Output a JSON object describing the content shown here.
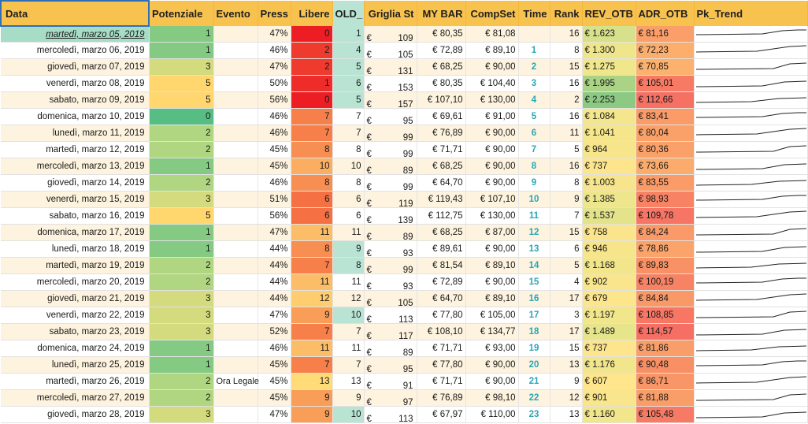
{
  "columns": [
    {
      "key": "data",
      "label": "Data"
    },
    {
      "key": "potenziale",
      "label": "Potenziale"
    },
    {
      "key": "evento",
      "label": "Evento"
    },
    {
      "key": "press",
      "label": "Press"
    },
    {
      "key": "libere",
      "label": "Libere"
    },
    {
      "key": "old",
      "label": "OLD_"
    },
    {
      "key": "griglia",
      "label": "Griglia St"
    },
    {
      "key": "mybar",
      "label": "MY BAR"
    },
    {
      "key": "compset",
      "label": "CompSet"
    },
    {
      "key": "time",
      "label": "Time"
    },
    {
      "key": "rank",
      "label": "Rank"
    },
    {
      "key": "rev",
      "label": "REV_OTB"
    },
    {
      "key": "adr",
      "label": "ADR_OTB"
    },
    {
      "key": "trend",
      "label": "Pk_Trend"
    }
  ],
  "colors": {
    "header": "#f8c24f",
    "header_old": "#b9e4d4",
    "selected_cell": "#a7dcc7",
    "selection_border": "#2e6fb8",
    "time_text": "#2aa6b8"
  },
  "rows": [
    {
      "data": "martedì, marzo 05, 2019",
      "potenziale": "1",
      "evento": "",
      "press": "47%",
      "libere": "0",
      "old": "1",
      "griglia_cur": "€",
      "griglia": "109",
      "mybar": "€ 80,35",
      "compset": "€ 81,08",
      "time": "",
      "rank": "16",
      "rev": "€ 1.623",
      "adr": "€ 81,16"
    },
    {
      "data": "mercoledì, marzo 06, 2019",
      "potenziale": "1",
      "evento": "",
      "press": "46%",
      "libere": "2",
      "old": "4",
      "griglia_cur": "€",
      "griglia": "105",
      "mybar": "€ 72,89",
      "compset": "€ 89,10",
      "time": "1",
      "rank": "8",
      "rev": "€ 1.300",
      "adr": "€ 72,23"
    },
    {
      "data": "giovedì, marzo 07, 2019",
      "potenziale": "3",
      "evento": "",
      "press": "47%",
      "libere": "2",
      "old": "5",
      "griglia_cur": "€",
      "griglia": "131",
      "mybar": "€ 68,25",
      "compset": "€ 90,00",
      "time": "2",
      "rank": "15",
      "rev": "€ 1.275",
      "adr": "€ 70,85"
    },
    {
      "data": "venerdì, marzo 08, 2019",
      "potenziale": "5",
      "evento": "",
      "press": "50%",
      "libere": "1",
      "old": "6",
      "griglia_cur": "€",
      "griglia": "153",
      "mybar": "€ 80,35",
      "compset": "€ 104,40",
      "time": "3",
      "rank": "16",
      "rev": "€ 1.995",
      "adr": "€ 105,01"
    },
    {
      "data": "sabato, marzo 09, 2019",
      "potenziale": "5",
      "evento": "",
      "press": "56%",
      "libere": "0",
      "old": "5",
      "griglia_cur": "€",
      "griglia": "157",
      "mybar": "€ 107,10",
      "compset": "€ 130,00",
      "time": "4",
      "rank": "2",
      "rev": "€ 2.253",
      "adr": "€ 112,66"
    },
    {
      "data": "domenica, marzo 10, 2019",
      "potenziale": "0",
      "evento": "",
      "press": "46%",
      "libere": "7",
      "old": "7",
      "griglia_cur": "€",
      "griglia": "95",
      "mybar": "€ 69,61",
      "compset": "€ 91,00",
      "time": "5",
      "rank": "16",
      "rev": "€ 1.084",
      "adr": "€ 83,41"
    },
    {
      "data": "lunedì, marzo 11, 2019",
      "potenziale": "2",
      "evento": "",
      "press": "46%",
      "libere": "7",
      "old": "7",
      "griglia_cur": "€",
      "griglia": "99",
      "mybar": "€ 76,89",
      "compset": "€ 90,00",
      "time": "6",
      "rank": "11",
      "rev": "€ 1.041",
      "adr": "€ 80,04"
    },
    {
      "data": "martedì, marzo 12, 2019",
      "potenziale": "2",
      "evento": "",
      "press": "45%",
      "libere": "8",
      "old": "8",
      "griglia_cur": "€",
      "griglia": "99",
      "mybar": "€ 71,71",
      "compset": "€ 90,00",
      "time": "7",
      "rank": "5",
      "rev": "€ 964",
      "adr": "€ 80,36"
    },
    {
      "data": "mercoledì, marzo 13, 2019",
      "potenziale": "1",
      "evento": "",
      "press": "45%",
      "libere": "10",
      "old": "10",
      "griglia_cur": "€",
      "griglia": "89",
      "mybar": "€ 68,25",
      "compset": "€ 90,00",
      "time": "8",
      "rank": "16",
      "rev": "€ 737",
      "adr": "€ 73,66"
    },
    {
      "data": "giovedì, marzo 14, 2019",
      "potenziale": "2",
      "evento": "",
      "press": "46%",
      "libere": "8",
      "old": "8",
      "griglia_cur": "€",
      "griglia": "99",
      "mybar": "€ 64,70",
      "compset": "€ 90,00",
      "time": "9",
      "rank": "8",
      "rev": "€ 1.003",
      "adr": "€ 83,55"
    },
    {
      "data": "venerdì, marzo 15, 2019",
      "potenziale": "3",
      "evento": "",
      "press": "51%",
      "libere": "6",
      "old": "6",
      "griglia_cur": "€",
      "griglia": "119",
      "mybar": "€ 119,43",
      "compset": "€ 107,10",
      "time": "10",
      "rank": "9",
      "rev": "€ 1.385",
      "adr": "€ 98,93"
    },
    {
      "data": "sabato, marzo 16, 2019",
      "potenziale": "5",
      "evento": "",
      "press": "56%",
      "libere": "6",
      "old": "6",
      "griglia_cur": "€",
      "griglia": "139",
      "mybar": "€ 112,75",
      "compset": "€ 130,00",
      "time": "11",
      "rank": "7",
      "rev": "€ 1.537",
      "adr": "€ 109,78"
    },
    {
      "data": "domenica, marzo 17, 2019",
      "potenziale": "1",
      "evento": "",
      "press": "47%",
      "libere": "11",
      "old": "11",
      "griglia_cur": "€",
      "griglia": "89",
      "mybar": "€ 68,25",
      "compset": "€ 87,00",
      "time": "12",
      "rank": "15",
      "rev": "€ 758",
      "adr": "€ 84,24"
    },
    {
      "data": "lunedì, marzo 18, 2019",
      "potenziale": "1",
      "evento": "",
      "press": "44%",
      "libere": "8",
      "old": "9",
      "griglia_cur": "€",
      "griglia": "93",
      "mybar": "€ 89,61",
      "compset": "€ 90,00",
      "time": "13",
      "rank": "6",
      "rev": "€ 946",
      "adr": "€ 78,86"
    },
    {
      "data": "martedì, marzo 19, 2019",
      "potenziale": "2",
      "evento": "",
      "press": "44%",
      "libere": "7",
      "old": "8",
      "griglia_cur": "€",
      "griglia": "99",
      "mybar": "€ 81,54",
      "compset": "€ 89,10",
      "time": "14",
      "rank": "5",
      "rev": "€ 1.168",
      "adr": "€ 89,83"
    },
    {
      "data": "mercoledì, marzo 20, 2019",
      "potenziale": "2",
      "evento": "",
      "press": "44%",
      "libere": "11",
      "old": "11",
      "griglia_cur": "€",
      "griglia": "93",
      "mybar": "€ 72,89",
      "compset": "€ 90,00",
      "time": "15",
      "rank": "4",
      "rev": "€ 902",
      "adr": "€ 100,19"
    },
    {
      "data": "giovedì, marzo 21, 2019",
      "potenziale": "3",
      "evento": "",
      "press": "44%",
      "libere": "12",
      "old": "12",
      "griglia_cur": "€",
      "griglia": "105",
      "mybar": "€ 64,70",
      "compset": "€ 89,10",
      "time": "16",
      "rank": "17",
      "rev": "€ 679",
      "adr": "€ 84,84"
    },
    {
      "data": "venerdì, marzo 22, 2019",
      "potenziale": "3",
      "evento": "",
      "press": "47%",
      "libere": "9",
      "old": "10",
      "griglia_cur": "€",
      "griglia": "113",
      "mybar": "€ 77,80",
      "compset": "€ 105,00",
      "time": "17",
      "rank": "3",
      "rev": "€ 1.197",
      "adr": "€ 108,85"
    },
    {
      "data": "sabato, marzo 23, 2019",
      "potenziale": "3",
      "evento": "",
      "press": "52%",
      "libere": "7",
      "old": "7",
      "griglia_cur": "€",
      "griglia": "117",
      "mybar": "€ 108,10",
      "compset": "€ 134,77",
      "time": "18",
      "rank": "17",
      "rev": "€ 1.489",
      "adr": "€ 114,57"
    },
    {
      "data": "domenica, marzo 24, 2019",
      "potenziale": "1",
      "evento": "",
      "press": "46%",
      "libere": "11",
      "old": "11",
      "griglia_cur": "€",
      "griglia": "89",
      "mybar": "€ 71,71",
      "compset": "€ 93,00",
      "time": "19",
      "rank": "15",
      "rev": "€ 737",
      "adr": "€ 81,86"
    },
    {
      "data": "lunedì, marzo 25, 2019",
      "potenziale": "1",
      "evento": "",
      "press": "45%",
      "libere": "7",
      "old": "7",
      "griglia_cur": "€",
      "griglia": "95",
      "mybar": "€ 77,80",
      "compset": "€ 90,00",
      "time": "20",
      "rank": "13",
      "rev": "€ 1.176",
      "adr": "€ 90,48"
    },
    {
      "data": "martedì, marzo 26, 2019",
      "potenziale": "2",
      "evento": "Ora Legale",
      "press": "45%",
      "libere": "13",
      "old": "13",
      "griglia_cur": "€",
      "griglia": "91",
      "mybar": "€ 71,71",
      "compset": "€ 90,00",
      "time": "21",
      "rank": "9",
      "rev": "€ 607",
      "adr": "€ 86,71"
    },
    {
      "data": "mercoledì, marzo 27, 2019",
      "potenziale": "2",
      "evento": "",
      "press": "45%",
      "libere": "9",
      "old": "9",
      "griglia_cur": "€",
      "griglia": "97",
      "mybar": "€ 76,89",
      "compset": "€ 98,10",
      "time": "22",
      "rank": "12",
      "rev": "€ 901",
      "adr": "€ 81,88"
    },
    {
      "data": "giovedì, marzo 28, 2019",
      "potenziale": "3",
      "evento": "",
      "press": "47%",
      "libere": "9",
      "old": "10",
      "griglia_cur": "€",
      "griglia": "113",
      "mybar": "€ 67,97",
      "compset": "€ 110,00",
      "time": "23",
      "rank": "13",
      "rev": "€ 1.160",
      "adr": "€ 105,48"
    }
  ]
}
